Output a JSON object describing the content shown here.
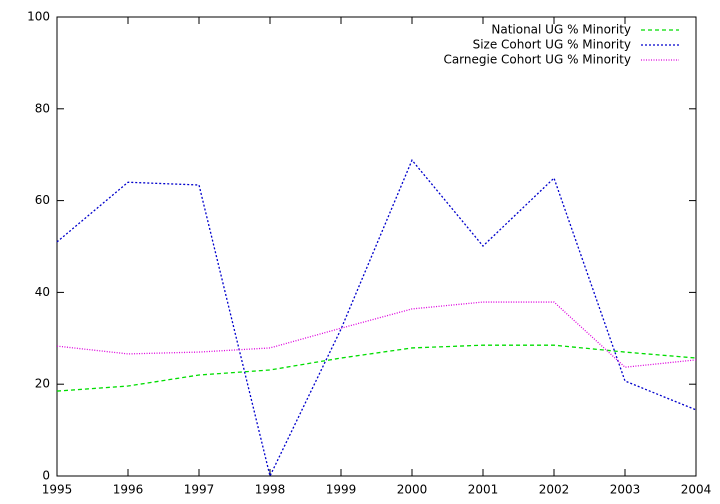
{
  "chart_data": {
    "type": "line",
    "x": [
      1995,
      1996,
      1997,
      1998,
      1999,
      2000,
      2001,
      2002,
      2003,
      2004
    ],
    "xlim": [
      1995,
      2004
    ],
    "xticks": [
      1995,
      1996,
      1997,
      1998,
      1999,
      2000,
      2001,
      2002,
      2003,
      2004
    ],
    "ylim": [
      0,
      100
    ],
    "yticks": [
      0,
      20,
      40,
      60,
      80,
      100
    ],
    "legend": "top-right",
    "series": [
      {
        "name": "National UG % Minority",
        "color": "#00dd00",
        "dash": "dashed",
        "values": [
          18.5,
          19.6,
          22,
          23.1,
          25.7,
          27.9,
          28.5,
          28.5,
          27,
          25.7
        ]
      },
      {
        "name": "Size Cohort UG % Minority",
        "color": "#0000cc",
        "dash": "dotted",
        "values": [
          51,
          64,
          63.4,
          0,
          32,
          68.8,
          50.1,
          64.9,
          20.7,
          14.4
        ]
      },
      {
        "name": "Carnegie Cohort UG % Minority",
        "color": "#dd00dd",
        "dash": "fine-dotted",
        "values": [
          28.3,
          26.6,
          27,
          27.9,
          32.2,
          36.4,
          37.9,
          37.9,
          23.7,
          25.3
        ]
      }
    ]
  }
}
